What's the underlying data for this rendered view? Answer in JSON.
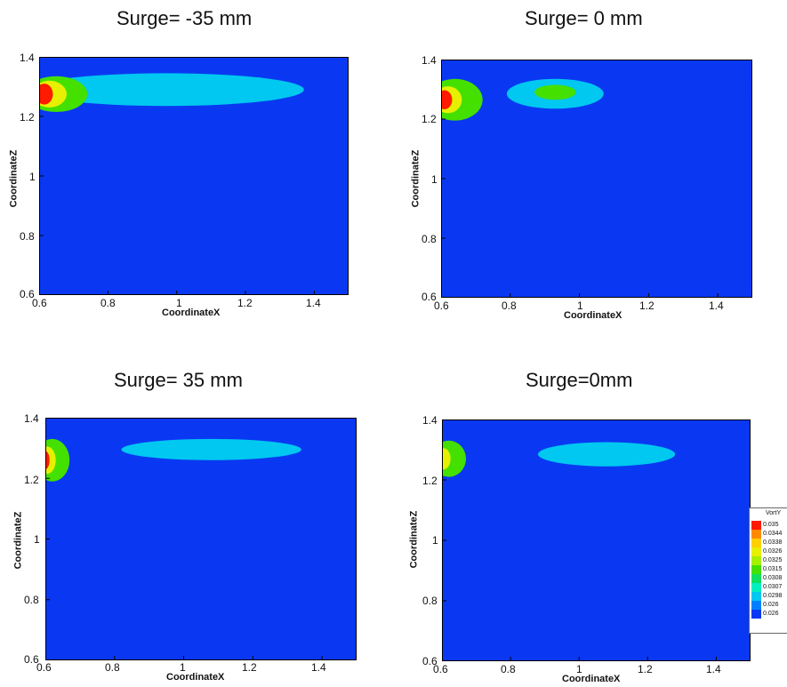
{
  "chart_data": [
    {
      "type": "contour",
      "title": "Surge= -35 mm",
      "xlabel": "CoordinateX",
      "ylabel": "CoordinateZ",
      "xlim": [
        0.6,
        1.5
      ],
      "ylim": [
        0.6,
        1.4
      ],
      "xticks": [
        "0.6",
        "0.8",
        "1",
        "1.2",
        "1.4"
      ],
      "yticks": [
        "0.6",
        "0.8",
        "1",
        "1.2",
        "1.4"
      ],
      "background_color": "#0a38f2",
      "blobs": [
        {
          "x": 0.97,
          "z": 1.29,
          "rx": 0.4,
          "rz": 0.055,
          "level": 0.0298
        },
        {
          "x": 0.92,
          "z": 1.297,
          "rx": 0.22,
          "rz": 0.04,
          "level": 0.0305
        },
        {
          "x": 0.65,
          "z": 1.275,
          "rx": 0.09,
          "rz": 0.06,
          "level": 0.0315
        },
        {
          "x": 0.63,
          "z": 1.275,
          "rx": 0.05,
          "rz": 0.045,
          "level": 0.0335
        },
        {
          "x": 0.615,
          "z": 1.275,
          "rx": 0.025,
          "rz": 0.035,
          "level": 0.035
        }
      ]
    },
    {
      "type": "contour",
      "title": "Surge= 0 mm",
      "xlabel": "CoordinateX",
      "ylabel": "CoordinateZ",
      "xlim": [
        0.6,
        1.5
      ],
      "ylim": [
        0.6,
        1.4
      ],
      "xticks": [
        "0.6",
        "0.8",
        "1",
        "1.2",
        "1.4"
      ],
      "yticks": [
        "0.6",
        "0.8",
        "1",
        "1.2",
        "1.4"
      ],
      "background_color": "#0a38f2",
      "blobs": [
        {
          "x": 1.05,
          "z": 1.3,
          "rx": 0.45,
          "rz": 0.05,
          "level": 0.029
        },
        {
          "x": 0.93,
          "z": 1.285,
          "rx": 0.14,
          "rz": 0.05,
          "level": 0.0305
        },
        {
          "x": 0.93,
          "z": 1.29,
          "rx": 0.06,
          "rz": 0.025,
          "level": 0.032
        },
        {
          "x": 0.64,
          "z": 1.265,
          "rx": 0.08,
          "rz": 0.07,
          "level": 0.0315
        },
        {
          "x": 0.62,
          "z": 1.265,
          "rx": 0.04,
          "rz": 0.045,
          "level": 0.0335
        },
        {
          "x": 0.61,
          "z": 1.265,
          "rx": 0.022,
          "rz": 0.032,
          "level": 0.035
        }
      ]
    },
    {
      "type": "contour",
      "title": "Surge= 35 mm",
      "xlabel": "CoordinateX",
      "ylabel": "CoordinateZ",
      "xlim": [
        0.6,
        1.5
      ],
      "ylim": [
        0.6,
        1.4
      ],
      "xticks": [
        "0.6",
        "0.8",
        "1",
        "1.2",
        "1.4"
      ],
      "yticks": [
        "0.6",
        "0.8",
        "1",
        "1.2",
        "1.4"
      ],
      "background_color": "#0a38f2",
      "blobs": [
        {
          "x": 1.12,
          "z": 1.305,
          "rx": 0.42,
          "rz": 0.045,
          "level": 0.029
        },
        {
          "x": 1.08,
          "z": 1.295,
          "rx": 0.26,
          "rz": 0.035,
          "level": 0.0298
        },
        {
          "x": 1.18,
          "z": 1.3,
          "rx": 0.12,
          "rz": 0.025,
          "level": 0.0305
        },
        {
          "x": 0.62,
          "z": 1.26,
          "rx": 0.05,
          "rz": 0.07,
          "level": 0.0315
        },
        {
          "x": 0.605,
          "z": 1.26,
          "rx": 0.025,
          "rz": 0.045,
          "level": 0.0335
        },
        {
          "x": 0.6,
          "z": 1.26,
          "rx": 0.012,
          "rz": 0.03,
          "level": 0.035
        }
      ]
    },
    {
      "type": "contour",
      "title": "Surge=0mm",
      "xlabel": "CoordinateX",
      "ylabel": "CoordinateZ",
      "xlim": [
        0.6,
        1.5
      ],
      "ylim": [
        0.6,
        1.4
      ],
      "xticks": [
        "0.6",
        "0.8",
        "1",
        "1.2",
        "1.4"
      ],
      "yticks": [
        "0.6",
        "0.8",
        "1",
        "1.2",
        "1.4"
      ],
      "background_color": "#0a38f2",
      "blobs": [
        {
          "x": 1.03,
          "z": 1.295,
          "rx": 0.33,
          "rz": 0.05,
          "level": 0.029
        },
        {
          "x": 1.08,
          "z": 1.285,
          "rx": 0.2,
          "rz": 0.04,
          "level": 0.0298
        },
        {
          "x": 1.12,
          "z": 1.29,
          "rx": 0.1,
          "rz": 0.028,
          "level": 0.0305
        },
        {
          "x": 0.62,
          "z": 1.27,
          "rx": 0.05,
          "rz": 0.06,
          "level": 0.0315
        },
        {
          "x": 0.605,
          "z": 1.27,
          "rx": 0.02,
          "rz": 0.035,
          "level": 0.0335
        }
      ]
    }
  ],
  "legend": {
    "title": "VortY",
    "levels": [
      {
        "label": "0.035",
        "value": 0.035,
        "color": "#ff1a00"
      },
      {
        "label": "0.0344",
        "value": 0.0344,
        "color": "#ff8a00"
      },
      {
        "label": "0.0338",
        "value": 0.0338,
        "color": "#ffd000"
      },
      {
        "label": "0.0326",
        "value": 0.0326,
        "color": "#e6f000"
      },
      {
        "label": "0.0325",
        "value": 0.0325,
        "color": "#a6f000"
      },
      {
        "label": "0.0315",
        "value": 0.0315,
        "color": "#44e000"
      },
      {
        "label": "0.0308",
        "value": 0.0308,
        "color": "#10e060"
      },
      {
        "label": "0.0307",
        "value": 0.0307,
        "color": "#00f0c0"
      },
      {
        "label": "0.0298",
        "value": 0.0298,
        "color": "#00c8f0"
      },
      {
        "label": "0.026",
        "value": 0.026,
        "color": "#0080ff"
      },
      {
        "label": "0.026",
        "value": 0.026,
        "color": "#0a38f2"
      }
    ]
  }
}
